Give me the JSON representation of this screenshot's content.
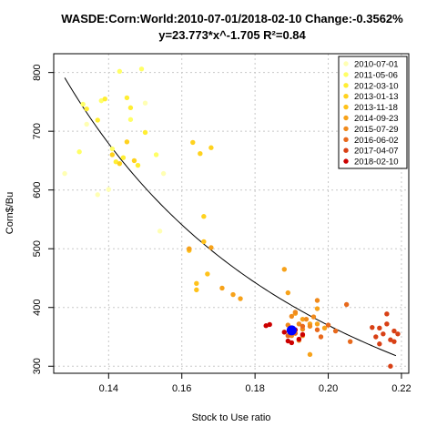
{
  "chart_data": {
    "type": "scatter",
    "title_line1": "WASDE:Corn:World:2010-07-01/2018-02-10 Change:-0.3562%",
    "title_line2": "y=23.773*x^-1.705 R²=0.84",
    "xlabel": "Stock to Use ratio",
    "ylabel": "Corn$/Bu",
    "xlim": [
      0.125,
      0.222
    ],
    "ylim": [
      288,
      832
    ],
    "x_ticks": [
      0.14,
      0.16,
      0.18,
      0.2,
      0.22
    ],
    "x_tick_labels": [
      "0.14",
      "0.16",
      "0.18",
      "0.20",
      "0.22"
    ],
    "y_ticks": [
      300,
      400,
      500,
      600,
      700,
      800
    ],
    "y_tick_labels": [
      "300",
      "400",
      "500",
      "600",
      "700",
      "800"
    ],
    "grid": true,
    "legend_position": "top-right",
    "fit": {
      "a": 23.773,
      "b": -1.705,
      "x_from": 0.128,
      "x_to": 0.2185
    },
    "highlight": {
      "x": 0.19,
      "y": 361,
      "color": "#0000ff"
    },
    "series": [
      {
        "name": "2010-07-01",
        "color": "#ffffb3",
        "points": [
          [
            0.128,
            628
          ],
          [
            0.134,
            712
          ],
          [
            0.137,
            592
          ],
          [
            0.14,
            601
          ],
          [
            0.15,
            748
          ],
          [
            0.155,
            628
          ],
          [
            0.154,
            530
          ]
        ]
      },
      {
        "name": "2011-05-06",
        "color": "#ffff66",
        "points": [
          [
            0.132,
            665
          ],
          [
            0.133,
            746
          ],
          [
            0.138,
            752
          ],
          [
            0.141,
            670
          ],
          [
            0.143,
            802
          ],
          [
            0.146,
            720
          ],
          [
            0.149,
            806
          ],
          [
            0.153,
            660
          ]
        ]
      },
      {
        "name": "2012-03-10",
        "color": "#ffee33",
        "points": [
          [
            0.134,
            738
          ],
          [
            0.137,
            719
          ],
          [
            0.139,
            755
          ],
          [
            0.142,
            648
          ],
          [
            0.144,
            655
          ],
          [
            0.145,
            757
          ],
          [
            0.146,
            740
          ],
          [
            0.148,
            642
          ],
          [
            0.15,
            698
          ]
        ]
      },
      {
        "name": "2013-01-13",
        "color": "#ffd21e",
        "points": [
          [
            0.141,
            660
          ],
          [
            0.143,
            645
          ],
          [
            0.145,
            682
          ],
          [
            0.147,
            650
          ],
          [
            0.163,
            681
          ],
          [
            0.165,
            662
          ],
          [
            0.168,
            672
          ],
          [
            0.166,
            555
          ]
        ]
      },
      {
        "name": "2013-11-18",
        "color": "#ffc21a",
        "points": [
          [
            0.162,
            497
          ],
          [
            0.164,
            430
          ],
          [
            0.164,
            441
          ],
          [
            0.166,
            512
          ],
          [
            0.167,
            457
          ]
        ]
      },
      {
        "name": "2014-09-23",
        "color": "#f7a21a",
        "points": [
          [
            0.162,
            500
          ],
          [
            0.168,
            502
          ],
          [
            0.171,
            433
          ],
          [
            0.174,
            422
          ],
          [
            0.176,
            415
          ],
          [
            0.188,
            465
          ],
          [
            0.189,
            425
          ],
          [
            0.191,
            390
          ],
          [
            0.193,
            380
          ],
          [
            0.195,
            372
          ],
          [
            0.195,
            320
          ],
          [
            0.197,
            372
          ],
          [
            0.197,
            398
          ],
          [
            0.199,
            365
          ]
        ]
      },
      {
        "name": "2015-07-29",
        "color": "#f08a1c",
        "points": [
          [
            0.189,
            370
          ],
          [
            0.19,
            385
          ],
          [
            0.191,
            392
          ],
          [
            0.192,
            372
          ],
          [
            0.193,
            363
          ],
          [
            0.194,
            380
          ],
          [
            0.195,
            368
          ],
          [
            0.196,
            384
          ],
          [
            0.197,
            412
          ],
          [
            0.193,
            352
          ],
          [
            0.19,
            352
          ],
          [
            0.192,
            344
          ]
        ]
      },
      {
        "name": "2016-06-02",
        "color": "#e8691c",
        "points": [
          [
            0.189,
            352
          ],
          [
            0.191,
            356
          ],
          [
            0.193,
            368
          ],
          [
            0.197,
            362
          ],
          [
            0.198,
            350
          ],
          [
            0.2,
            370
          ],
          [
            0.202,
            360
          ],
          [
            0.205,
            405
          ],
          [
            0.206,
            342
          ]
        ]
      },
      {
        "name": "2017-04-07",
        "color": "#d84015",
        "points": [
          [
            0.213,
            350
          ],
          [
            0.214,
            365
          ],
          [
            0.215,
            355
          ],
          [
            0.216,
            372
          ],
          [
            0.216,
            389
          ],
          [
            0.217,
            345
          ],
          [
            0.218,
            360
          ],
          [
            0.218,
            342
          ],
          [
            0.217,
            300
          ],
          [
            0.214,
            338
          ],
          [
            0.212,
            366
          ],
          [
            0.219,
            355
          ]
        ]
      },
      {
        "name": "2018-02-10",
        "color": "#cc0000",
        "points": [
          [
            0.183,
            369
          ],
          [
            0.184,
            371
          ],
          [
            0.189,
            343
          ],
          [
            0.19,
            340
          ],
          [
            0.188,
            358
          ],
          [
            0.191,
            362
          ],
          [
            0.193,
            354
          ],
          [
            0.192,
            346
          ]
        ]
      }
    ]
  }
}
